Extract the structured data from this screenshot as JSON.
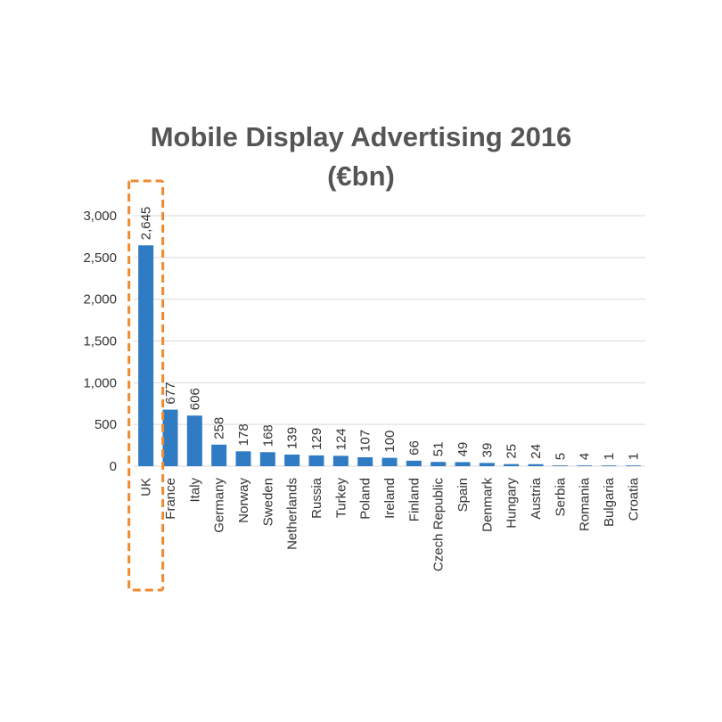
{
  "chart_data": {
    "type": "bar",
    "title_line1": "Mobile Display Advertising 2016",
    "title_line2": "(€bn)",
    "xlabel": "",
    "ylabel": "",
    "ylim": [
      0,
      3000
    ],
    "yticks": [
      0,
      500,
      1000,
      1500,
      2000,
      2500,
      3000
    ],
    "ytick_labels": [
      "0",
      "500",
      "1,000",
      "1,500",
      "2,000",
      "2,500",
      "3,000"
    ],
    "grid": true,
    "categories": [
      "UK",
      "France",
      "Italy",
      "Germany",
      "Norway",
      "Sweden",
      "Netherlands",
      "Russia",
      "Turkey",
      "Poland",
      "Ireland",
      "Finland",
      "Czech Republic",
      "Spain",
      "Denmark",
      "Hungary",
      "Austria",
      "Serbia",
      "Romania",
      "Bulgaria",
      "Croatia"
    ],
    "values": [
      2645,
      677,
      606,
      258,
      178,
      168,
      139,
      129,
      124,
      107,
      100,
      66,
      51,
      49,
      39,
      25,
      24,
      5,
      4,
      1,
      1
    ],
    "data_labels": [
      "2,645",
      "677",
      "606",
      "258",
      "178",
      "168",
      "139",
      "129",
      "124",
      "107",
      "100",
      "66",
      "51",
      "49",
      "39",
      "25",
      "24",
      "5",
      "4",
      "1",
      "1"
    ],
    "highlighted_category": "UK"
  },
  "colors": {
    "bar": "#2f7bc4",
    "highlight": "#f08a2e",
    "grid": "#d9d9d9",
    "title": "#555555"
  }
}
